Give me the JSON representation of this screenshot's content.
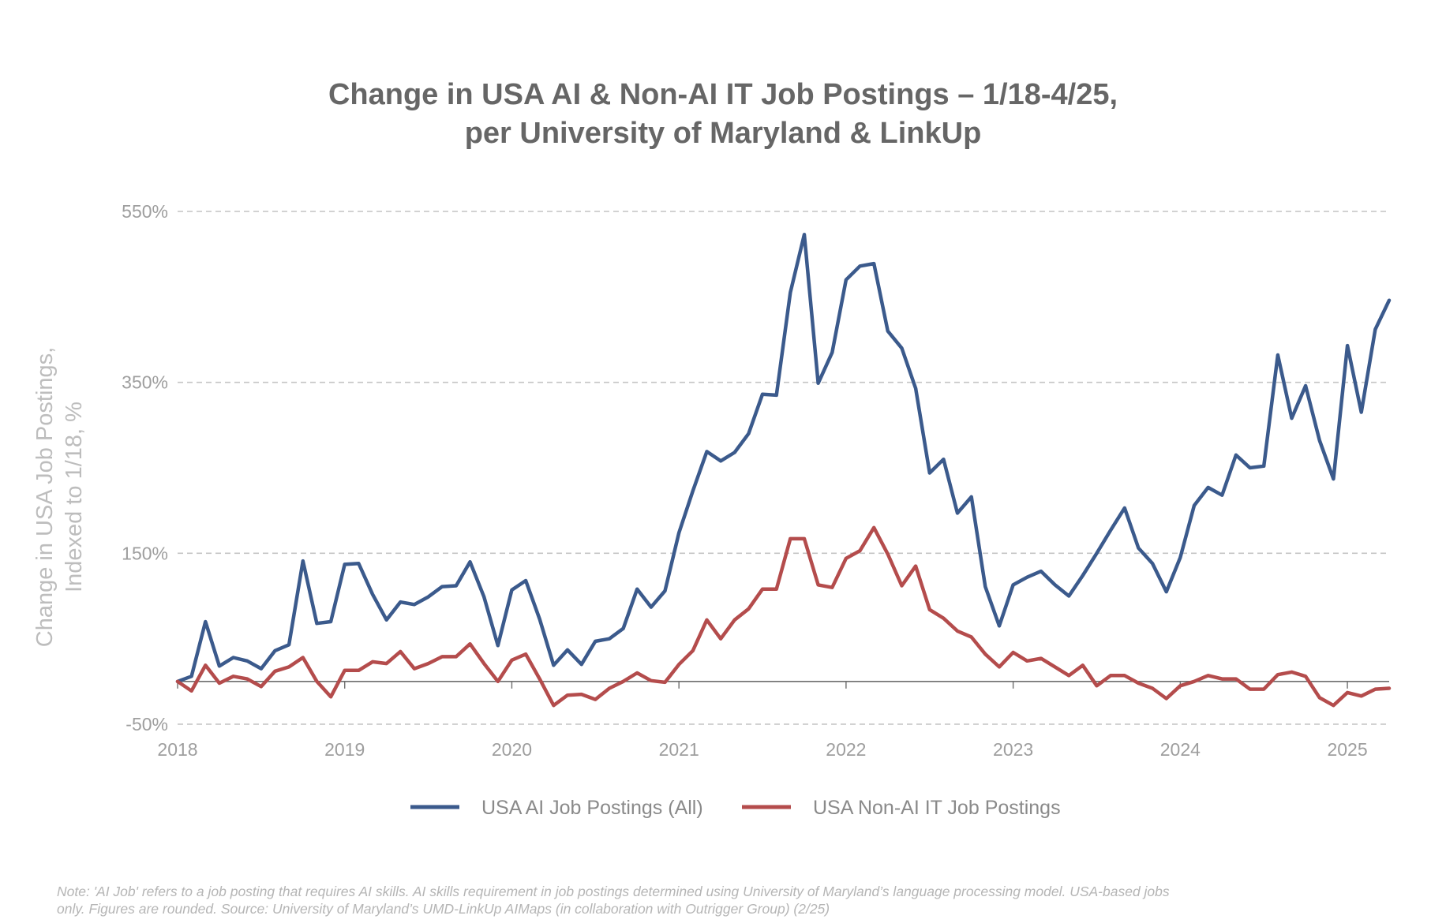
{
  "chart_data": {
    "type": "line",
    "title": "Change in USA AI & Non-AI IT Job Postings – 1/18-4/25,",
    "subtitle": "per University of Maryland & LinkUp",
    "ylabel_line1": "Change in USA Job Postings,",
    "ylabel_line2": "Indexed to 1/18, %",
    "xlabel": "",
    "ylim": [
      -50,
      550
    ],
    "yticks": [
      -50,
      150,
      350,
      550
    ],
    "ytick_labels": [
      "-50%",
      "150%",
      "350%",
      "550%"
    ],
    "xlim": [
      2018.0,
      2025.25
    ],
    "xticks": [
      2018,
      2019,
      2020,
      2021,
      2022,
      2023,
      2024,
      2025
    ],
    "xtick_labels": [
      "2018",
      "2019",
      "2020",
      "2021",
      "2022",
      "2023",
      "2024",
      "2025"
    ],
    "grid": "horizontal dashed",
    "legend": "bottom",
    "note_line1": "Note: 'AI Job' refers to a job posting that requires AI skills. AI skills requirement in job postings determined using University of Maryland’s language processing model. USA-based jobs",
    "note_line2": "only. Figures are rounded. Source: University of Maryland’s UMD-LinkUp AIMaps (in collaboration with Outrigger Group) (2/25)",
    "x": [
      "2018-01",
      "2018-02",
      "2018-03",
      "2018-04",
      "2018-05",
      "2018-06",
      "2018-07",
      "2018-08",
      "2018-09",
      "2018-10",
      "2018-11",
      "2018-12",
      "2019-01",
      "2019-02",
      "2019-03",
      "2019-04",
      "2019-05",
      "2019-06",
      "2019-07",
      "2019-08",
      "2019-09",
      "2019-10",
      "2019-11",
      "2019-12",
      "2020-01",
      "2020-02",
      "2020-03",
      "2020-04",
      "2020-05",
      "2020-06",
      "2020-07",
      "2020-08",
      "2020-09",
      "2020-10",
      "2020-11",
      "2020-12",
      "2021-01",
      "2021-02",
      "2021-03",
      "2021-04",
      "2021-05",
      "2021-06",
      "2021-07",
      "2021-08",
      "2021-09",
      "2021-10",
      "2021-11",
      "2021-12",
      "2022-01",
      "2022-02",
      "2022-03",
      "2022-04",
      "2022-05",
      "2022-06",
      "2022-07",
      "2022-08",
      "2022-09",
      "2022-10",
      "2022-11",
      "2022-12",
      "2023-01",
      "2023-02",
      "2023-03",
      "2023-04",
      "2023-05",
      "2023-06",
      "2023-07",
      "2023-08",
      "2023-09",
      "2023-10",
      "2023-11",
      "2023-12",
      "2024-01",
      "2024-02",
      "2024-03",
      "2024-04",
      "2024-05",
      "2024-06",
      "2024-07",
      "2024-08",
      "2024-09",
      "2024-10",
      "2024-11",
      "2024-12",
      "2025-01",
      "2025-02",
      "2025-03",
      "2025-04"
    ],
    "series": [
      {
        "name": "USA AI Job Postings (All)",
        "color": "#3b5a8c",
        "values": [
          0,
          6,
          70,
          18,
          28,
          24,
          15,
          36,
          43,
          141,
          68,
          70,
          137,
          138,
          102,
          72,
          93,
          90,
          99,
          111,
          112,
          140,
          99,
          42,
          107,
          118,
          73,
          19,
          37,
          20,
          47,
          50,
          62,
          108,
          87,
          106,
          174,
          223,
          269,
          258,
          268,
          290,
          336,
          335,
          455,
          523,
          349,
          385,
          470,
          486,
          489,
          410,
          390,
          343,
          244,
          260,
          197,
          216,
          111,
          65,
          113,
          122,
          129,
          113,
          100,
          124,
          150,
          177,
          203,
          156,
          138,
          105,
          145,
          206,
          227,
          218,
          265,
          250,
          252,
          382,
          308,
          346,
          282,
          237,
          393,
          315,
          412,
          446
        ]
      },
      {
        "name": "USA Non-AI IT Job Postings",
        "color": "#b44c4c",
        "values": [
          0,
          -11,
          19,
          -2,
          6,
          3,
          -6,
          12,
          17,
          28,
          0,
          -18,
          13,
          13,
          23,
          21,
          35,
          15,
          21,
          29,
          29,
          44,
          21,
          0,
          25,
          32,
          3,
          -28,
          -16,
          -15,
          -21,
          -8,
          0,
          10,
          1,
          -1,
          20,
          36,
          72,
          50,
          72,
          85,
          108,
          108,
          167,
          167,
          113,
          110,
          144,
          153,
          180,
          149,
          112,
          135,
          84,
          74,
          59,
          52,
          32,
          17,
          34,
          24,
          27,
          17,
          7,
          19,
          -5,
          7,
          7,
          -2,
          -8,
          -20,
          -5,
          0,
          7,
          3,
          3,
          -9,
          -9,
          8,
          11,
          6,
          -19,
          -28,
          -13,
          -17,
          -9,
          -8
        ]
      }
    ]
  }
}
